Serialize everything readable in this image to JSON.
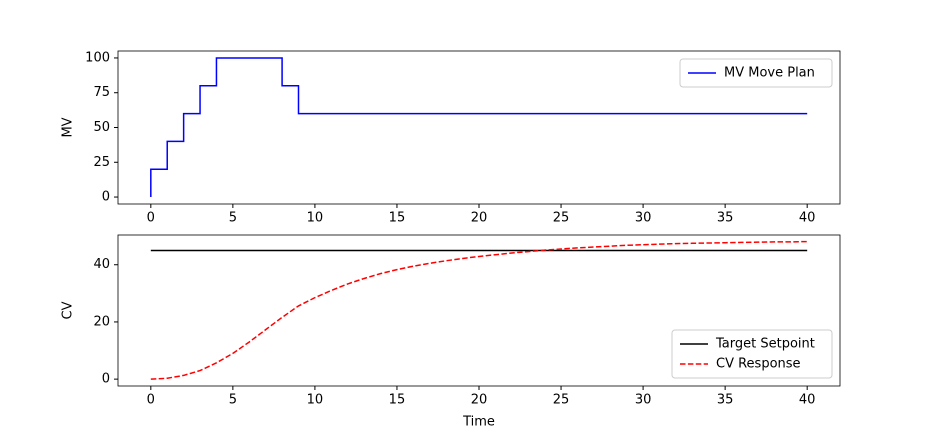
{
  "chart_data": [
    {
      "type": "line",
      "drawstyle": "steps-pre",
      "ylabel": "MV",
      "x": [
        0,
        1,
        2,
        3,
        4,
        5,
        6,
        7,
        8,
        9,
        10,
        11,
        12,
        13,
        14,
        15,
        16,
        17,
        18,
        19,
        20,
        21,
        22,
        23,
        24,
        25,
        26,
        27,
        28,
        29,
        30,
        31,
        32,
        33,
        34,
        35,
        36,
        37,
        38,
        39,
        40
      ],
      "series": [
        {
          "name": "MV Move Plan",
          "color": "#0000ff",
          "dash": "solid",
          "values": [
            0,
            20,
            40,
            60,
            80,
            100,
            100,
            100,
            100,
            80,
            60,
            60,
            60,
            60,
            60,
            60,
            60,
            60,
            60,
            60,
            60,
            60,
            60,
            60,
            60,
            60,
            60,
            60,
            60,
            60,
            60,
            60,
            60,
            60,
            60,
            60,
            60,
            60,
            60,
            60,
            60
          ]
        }
      ],
      "xlim": [
        -2,
        42
      ],
      "xticks": [
        0,
        5,
        10,
        15,
        20,
        25,
        30,
        35,
        40
      ],
      "ylim": [
        -5,
        105
      ],
      "yticks": [
        0,
        25,
        50,
        75,
        100
      ],
      "legend": "upper right"
    },
    {
      "type": "line",
      "drawstyle": "default",
      "ylabel": "CV",
      "xlabel": "Time",
      "x": [
        0,
        1,
        2,
        3,
        4,
        5,
        6,
        7,
        8,
        9,
        10,
        11,
        12,
        13,
        14,
        15,
        16,
        17,
        18,
        19,
        20,
        21,
        22,
        23,
        24,
        25,
        26,
        27,
        28,
        29,
        30,
        31,
        32,
        33,
        34,
        35,
        36,
        37,
        38,
        39,
        40
      ],
      "series": [
        {
          "name": "Target Setpoint",
          "color": "#000000",
          "dash": "solid",
          "values": [
            45,
            45,
            45,
            45,
            45,
            45,
            45,
            45,
            45,
            45,
            45,
            45,
            45,
            45,
            45,
            45,
            45,
            45,
            45,
            45,
            45,
            45,
            45,
            45,
            45,
            45,
            45,
            45,
            45,
            45,
            45,
            45,
            45,
            45,
            45,
            45,
            45,
            45,
            45,
            45,
            45
          ]
        },
        {
          "name": "CV Response",
          "color": "#ff0000",
          "dash": "dashed",
          "values": [
            0,
            0.3,
            1.3,
            3,
            5.7,
            9,
            13,
            17.3,
            21.6,
            25.6,
            28.5,
            31,
            33.3,
            35.2,
            36.9,
            38.3,
            39.5,
            40.5,
            41.4,
            42.2,
            42.9,
            43.5,
            44.1,
            44.6,
            45.1,
            45.5,
            45.9,
            46.2,
            46.5,
            46.8,
            47,
            47.2,
            47.4,
            47.5,
            47.6,
            47.7,
            47.8,
            47.9,
            48,
            48,
            48.1
          ]
        }
      ],
      "xlim": [
        -2,
        42
      ],
      "xticks": [
        0,
        5,
        10,
        15,
        20,
        25,
        30,
        35,
        40
      ],
      "ylim": [
        -2.4,
        50.4
      ],
      "yticks": [
        0,
        20,
        40
      ],
      "legend": "lower right"
    }
  ]
}
